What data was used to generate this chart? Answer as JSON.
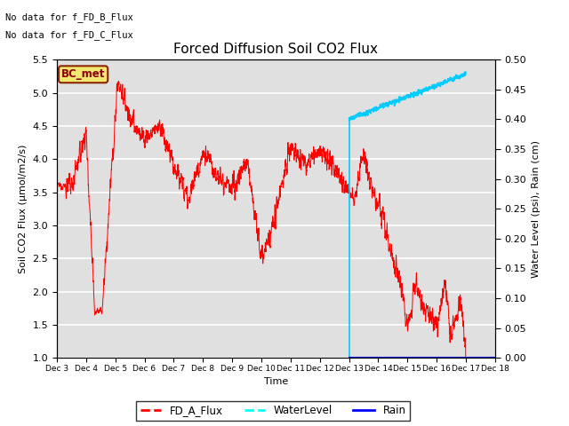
{
  "title": "Forced Diffusion Soil CO2 Flux",
  "xlabel": "Time",
  "ylabel_left": "Soil CO2 Flux (μmol/m2/s)",
  "ylabel_right": "Water Level (psi), Rain (cm)",
  "annotation1": "No data for f_FD_B_Flux",
  "annotation2": "No data for f_FD_C_Flux",
  "bc_met_label": "BC_met",
  "ylim_left": [
    1.0,
    5.5
  ],
  "ylim_right": [
    0.0,
    0.5
  ],
  "background_color": "#ffffff",
  "plot_bg_color": "#e0e0e0",
  "grid_color": "#ffffff",
  "legend_labels": [
    "FD_A_Flux",
    "WaterLevel",
    "Rain"
  ],
  "legend_colors": [
    "#ff0000",
    "#00ffff",
    "#0000ff"
  ],
  "fd_a_color": "#ff0000",
  "water_color": "#00ccff",
  "rain_color": "#0000cc",
  "xtick_labels": [
    "Dec 3",
    "Dec 4",
    "Dec 5",
    "Dec 6",
    "Dec 7",
    "Dec 8",
    "Dec 9",
    "Dec 10",
    "Dec 11",
    "Dec 12",
    "Dec 13",
    "Dec 14",
    "Dec 15",
    "Dec 16",
    "Dec 17",
    "Dec 18"
  ],
  "yticks_left": [
    1.0,
    1.5,
    2.0,
    2.5,
    3.0,
    3.5,
    4.0,
    4.5,
    5.0,
    5.5
  ],
  "yticks_right": [
    0.0,
    0.05,
    0.1,
    0.15,
    0.2,
    0.25,
    0.3,
    0.35,
    0.4,
    0.45,
    0.5
  ]
}
